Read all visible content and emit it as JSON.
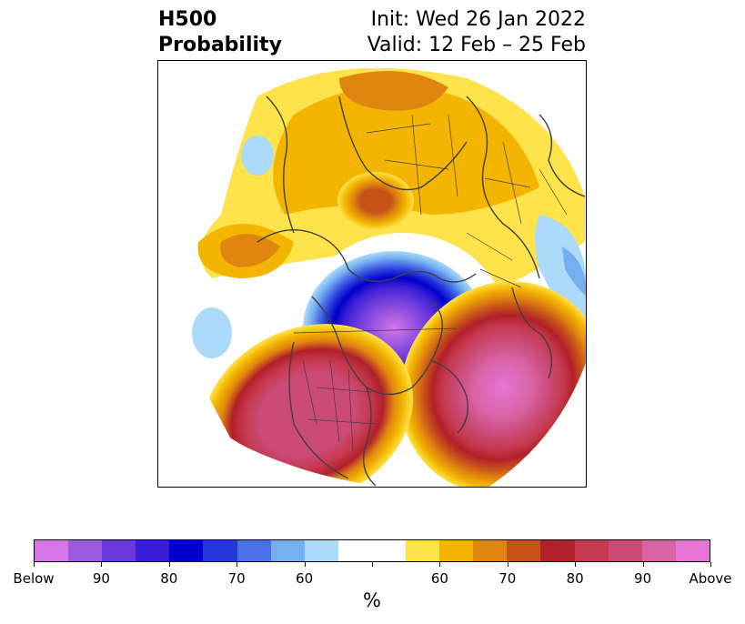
{
  "header": {
    "title_line1": "H500",
    "title_line2": "Probability",
    "init_label": "Init: Wed 26 Jan 2022",
    "valid_label": "Valid: 12 Feb – 25 Feb"
  },
  "map": {
    "projection": "north-polar-stereographic",
    "features": [
      "coastlines",
      "country-borders",
      "us-state-borders"
    ],
    "anomalies": [
      {
        "name": "below-normal-center",
        "region": "Hudson Bay / eastern Canada",
        "peak_category": "Below"
      },
      {
        "name": "above-normal-atlantic",
        "region": "western North Atlantic",
        "peak_category": "Above"
      },
      {
        "name": "above-normal-us",
        "region": "western / central United States",
        "peak_category": "85"
      },
      {
        "name": "above-normal-siberia",
        "region": "north-central Siberia",
        "peak_category": "70"
      },
      {
        "name": "below-normal-europe",
        "region": "western Europe",
        "peak_category": "55"
      }
    ]
  },
  "colorbar": {
    "unit_label": "%",
    "below_colors": [
      "#d674e8",
      "#9f59e1",
      "#6b39dc",
      "#3a1ed6",
      "#0000cd",
      "#2437d9",
      "#4a70e7",
      "#74aff1",
      "#acdafa"
    ],
    "neutral_color": "#ffffff",
    "above_colors": [
      "#fee34a",
      "#f3b500",
      "#e08610",
      "#c75218",
      "#b2202a",
      "#c6394e",
      "#cb4a78",
      "#d963a4",
      "#e675d8"
    ],
    "tick_labels": [
      "Below",
      "90",
      "80",
      "70",
      "60",
      "60",
      "70",
      "80",
      "90",
      "Above"
    ]
  }
}
